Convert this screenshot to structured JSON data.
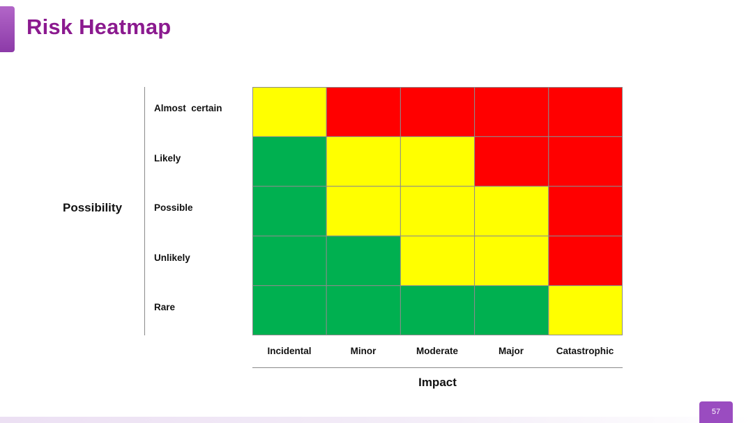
{
  "slide": {
    "title": "Risk Heatmap",
    "page_number": "57"
  },
  "colors": {
    "title": "#8b1a8f",
    "accent": "#9a4cc0",
    "green": "#00b050",
    "yellow": "#ffff00",
    "red": "#ff0000",
    "grid": "#8c8c8c"
  },
  "chart_data": {
    "type": "heatmap",
    "title": "Risk Heatmap",
    "xlabel": "Impact",
    "ylabel": "Possibility",
    "x_categories": [
      "Incidental",
      "Minor",
      "Moderate",
      "Major",
      "Catastrophic"
    ],
    "y_categories": [
      "Almost  certain",
      "Likely",
      "Possible",
      "Unlikely",
      "Rare"
    ],
    "legend": {
      "G": "green",
      "Y": "yellow",
      "R": "red"
    },
    "cells": [
      [
        "Y",
        "R",
        "R",
        "R",
        "R"
      ],
      [
        "G",
        "Y",
        "Y",
        "R",
        "R"
      ],
      [
        "G",
        "Y",
        "Y",
        "Y",
        "R"
      ],
      [
        "G",
        "G",
        "Y",
        "Y",
        "R"
      ],
      [
        "G",
        "G",
        "G",
        "G",
        "Y"
      ]
    ]
  }
}
